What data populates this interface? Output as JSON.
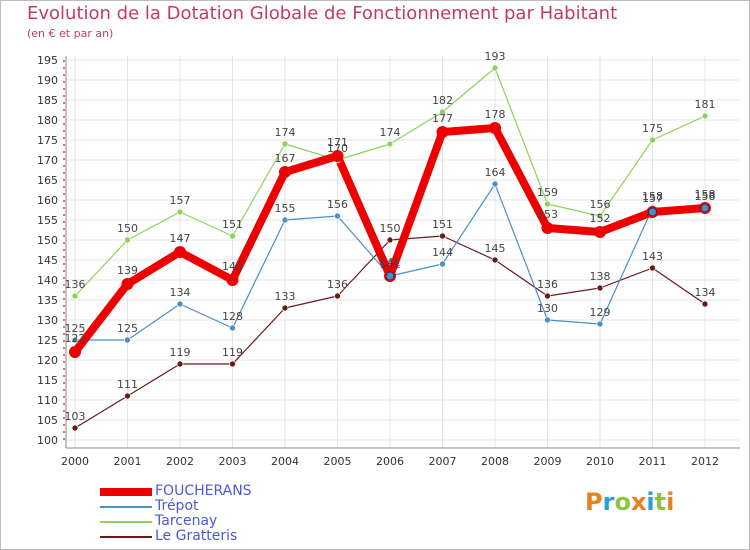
{
  "title": "Evolution de la Dotation Globale de Fonctionnement par Habitant",
  "subtitle": "(en € et par an)",
  "logo": {
    "text": "Proxiti",
    "colors": [
      "#e8801e",
      "#2e9ed9",
      "#8cc63f",
      "#e8801e",
      "#2e9ed9",
      "#8cc63f",
      "#e8801e"
    ]
  },
  "chart_data": {
    "type": "line",
    "title": "Evolution de la Dotation Globale de Fonctionnement par Habitant",
    "subtitle": "(en € et par an)",
    "x": [
      "2000",
      "2001",
      "2002",
      "2003",
      "2004",
      "2005",
      "2006",
      "2007",
      "2008",
      "2009",
      "2010",
      "2011",
      "2012"
    ],
    "ylim": [
      100,
      195
    ],
    "yticks": [
      100,
      105,
      110,
      115,
      120,
      125,
      130,
      135,
      140,
      145,
      150,
      155,
      160,
      165,
      170,
      175,
      180,
      185,
      190,
      195
    ],
    "grid": true,
    "legend_position": "bottom-left",
    "series": [
      {
        "name": "FOUCHERANS",
        "color": "#ee0000",
        "values": [
          122,
          139,
          147,
          140,
          167,
          171,
          141,
          177,
          178,
          153,
          152,
          157,
          158
        ]
      },
      {
        "name": "Trépot",
        "color": "#4a8fc9",
        "values": [
          125,
          125,
          134,
          128,
          155,
          156,
          141,
          144,
          164,
          130,
          129,
          158,
          158
        ]
      },
      {
        "name": "Tarcenay",
        "color": "#8fd15c",
        "values": [
          136,
          150,
          157,
          151,
          174,
          170,
          174,
          182,
          193,
          159,
          156,
          175,
          181
        ]
      },
      {
        "name": "Le Gratteris",
        "color": "#6b1a1a",
        "values": [
          103,
          111,
          119,
          119,
          133,
          136,
          150,
          151,
          145,
          136,
          138,
          143,
          134
        ]
      }
    ]
  }
}
